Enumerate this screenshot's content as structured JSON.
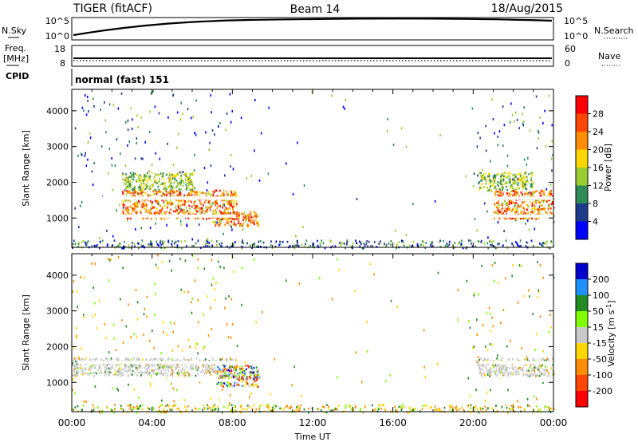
{
  "header": {
    "title_left": "TIGER (fitACF)",
    "title_center": "Beam 14",
    "title_right": "18/Aug/2015"
  },
  "strip_panels": {
    "nsky": {
      "label": "N.Sky",
      "ticks": [
        "10^5",
        "10^0"
      ],
      "right_label": "N.Search",
      "right_ticks": [
        "10^5",
        "10^0"
      ]
    },
    "freq": {
      "label_line1": "Freq.",
      "label_line2": "[MHz]",
      "ticks": [
        "18",
        "8"
      ],
      "right_label": "Nave",
      "right_ticks": [
        "60",
        "0"
      ]
    },
    "cpid": {
      "label": "CPID",
      "text": "normal (fast) 151"
    }
  },
  "chart_data": [
    {
      "type": "heatmap",
      "name": "power",
      "ylabel": "Slant Range [km]",
      "xlabel": "Time UT",
      "x_ticks": [
        "00:00",
        "04:00",
        "08:00",
        "12:00",
        "16:00",
        "20:00",
        "00:00"
      ],
      "x_range_hours": [
        0,
        24
      ],
      "y_ticks": [
        1000,
        2000,
        3000,
        4000
      ],
      "ylim": [
        180,
        4600
      ],
      "colorbar": {
        "label": "Power [dB]",
        "ticks": [
          "28",
          "24",
          "20",
          "16",
          "12",
          "8",
          "4"
        ],
        "colors": [
          "#ff0000",
          "#ff4500",
          "#ff8c00",
          "#ffd700",
          "#9acd32",
          "#2e8b57",
          "#1e3a8a",
          "#0000ff"
        ]
      },
      "regions": [
        {
          "t": [
            2.5,
            8.2
          ],
          "r": [
            1000,
            1800
          ],
          "level": "high"
        },
        {
          "t": [
            2.5,
            6.0
          ],
          "r": [
            1800,
            2300
          ],
          "level": "mid"
        },
        {
          "t": [
            21.0,
            24.0
          ],
          "r": [
            1000,
            1800
          ],
          "level": "high"
        },
        {
          "t": [
            20.2,
            23.0
          ],
          "r": [
            1800,
            2300
          ],
          "level": "mid"
        },
        {
          "t": [
            7.0,
            9.3
          ],
          "r": [
            800,
            1200
          ],
          "level": "high"
        },
        {
          "t": [
            0,
            24
          ],
          "r": [
            180,
            400
          ],
          "level": "low"
        }
      ]
    },
    {
      "type": "heatmap",
      "name": "velocity",
      "ylabel": "Slant Range [km]",
      "xlabel": "Time UT",
      "x_ticks": [
        "00:00",
        "04:00",
        "08:00",
        "12:00",
        "16:00",
        "20:00",
        "00:00"
      ],
      "x_range_hours": [
        0,
        24
      ],
      "y_ticks": [
        1000,
        2000,
        3000,
        4000
      ],
      "ylim": [
        180,
        4600
      ],
      "colorbar": {
        "label": "Velocity [m s^-1]",
        "ticks": [
          "200",
          "100",
          "50",
          "15",
          "-15",
          "-50",
          "-100",
          "-200"
        ],
        "colors": [
          "#0000cd",
          "#1e90ff",
          "#228b22",
          "#7fff00",
          "#c8c8c8",
          "#ffd700",
          "#ff8c00",
          "#ff4500",
          "#ff0000"
        ]
      },
      "regions": [
        {
          "t": [
            0,
            8.2
          ],
          "r": [
            1200,
            1700
          ],
          "level": "ground"
        },
        {
          "t": [
            20.2,
            24.0
          ],
          "r": [
            1200,
            1700
          ],
          "level": "ground"
        },
        {
          "t": [
            7.2,
            9.3
          ],
          "r": [
            900,
            1500
          ],
          "level": "mixed"
        },
        {
          "t": [
            0,
            24
          ],
          "r": [
            180,
            400
          ],
          "level": "low"
        }
      ]
    }
  ]
}
